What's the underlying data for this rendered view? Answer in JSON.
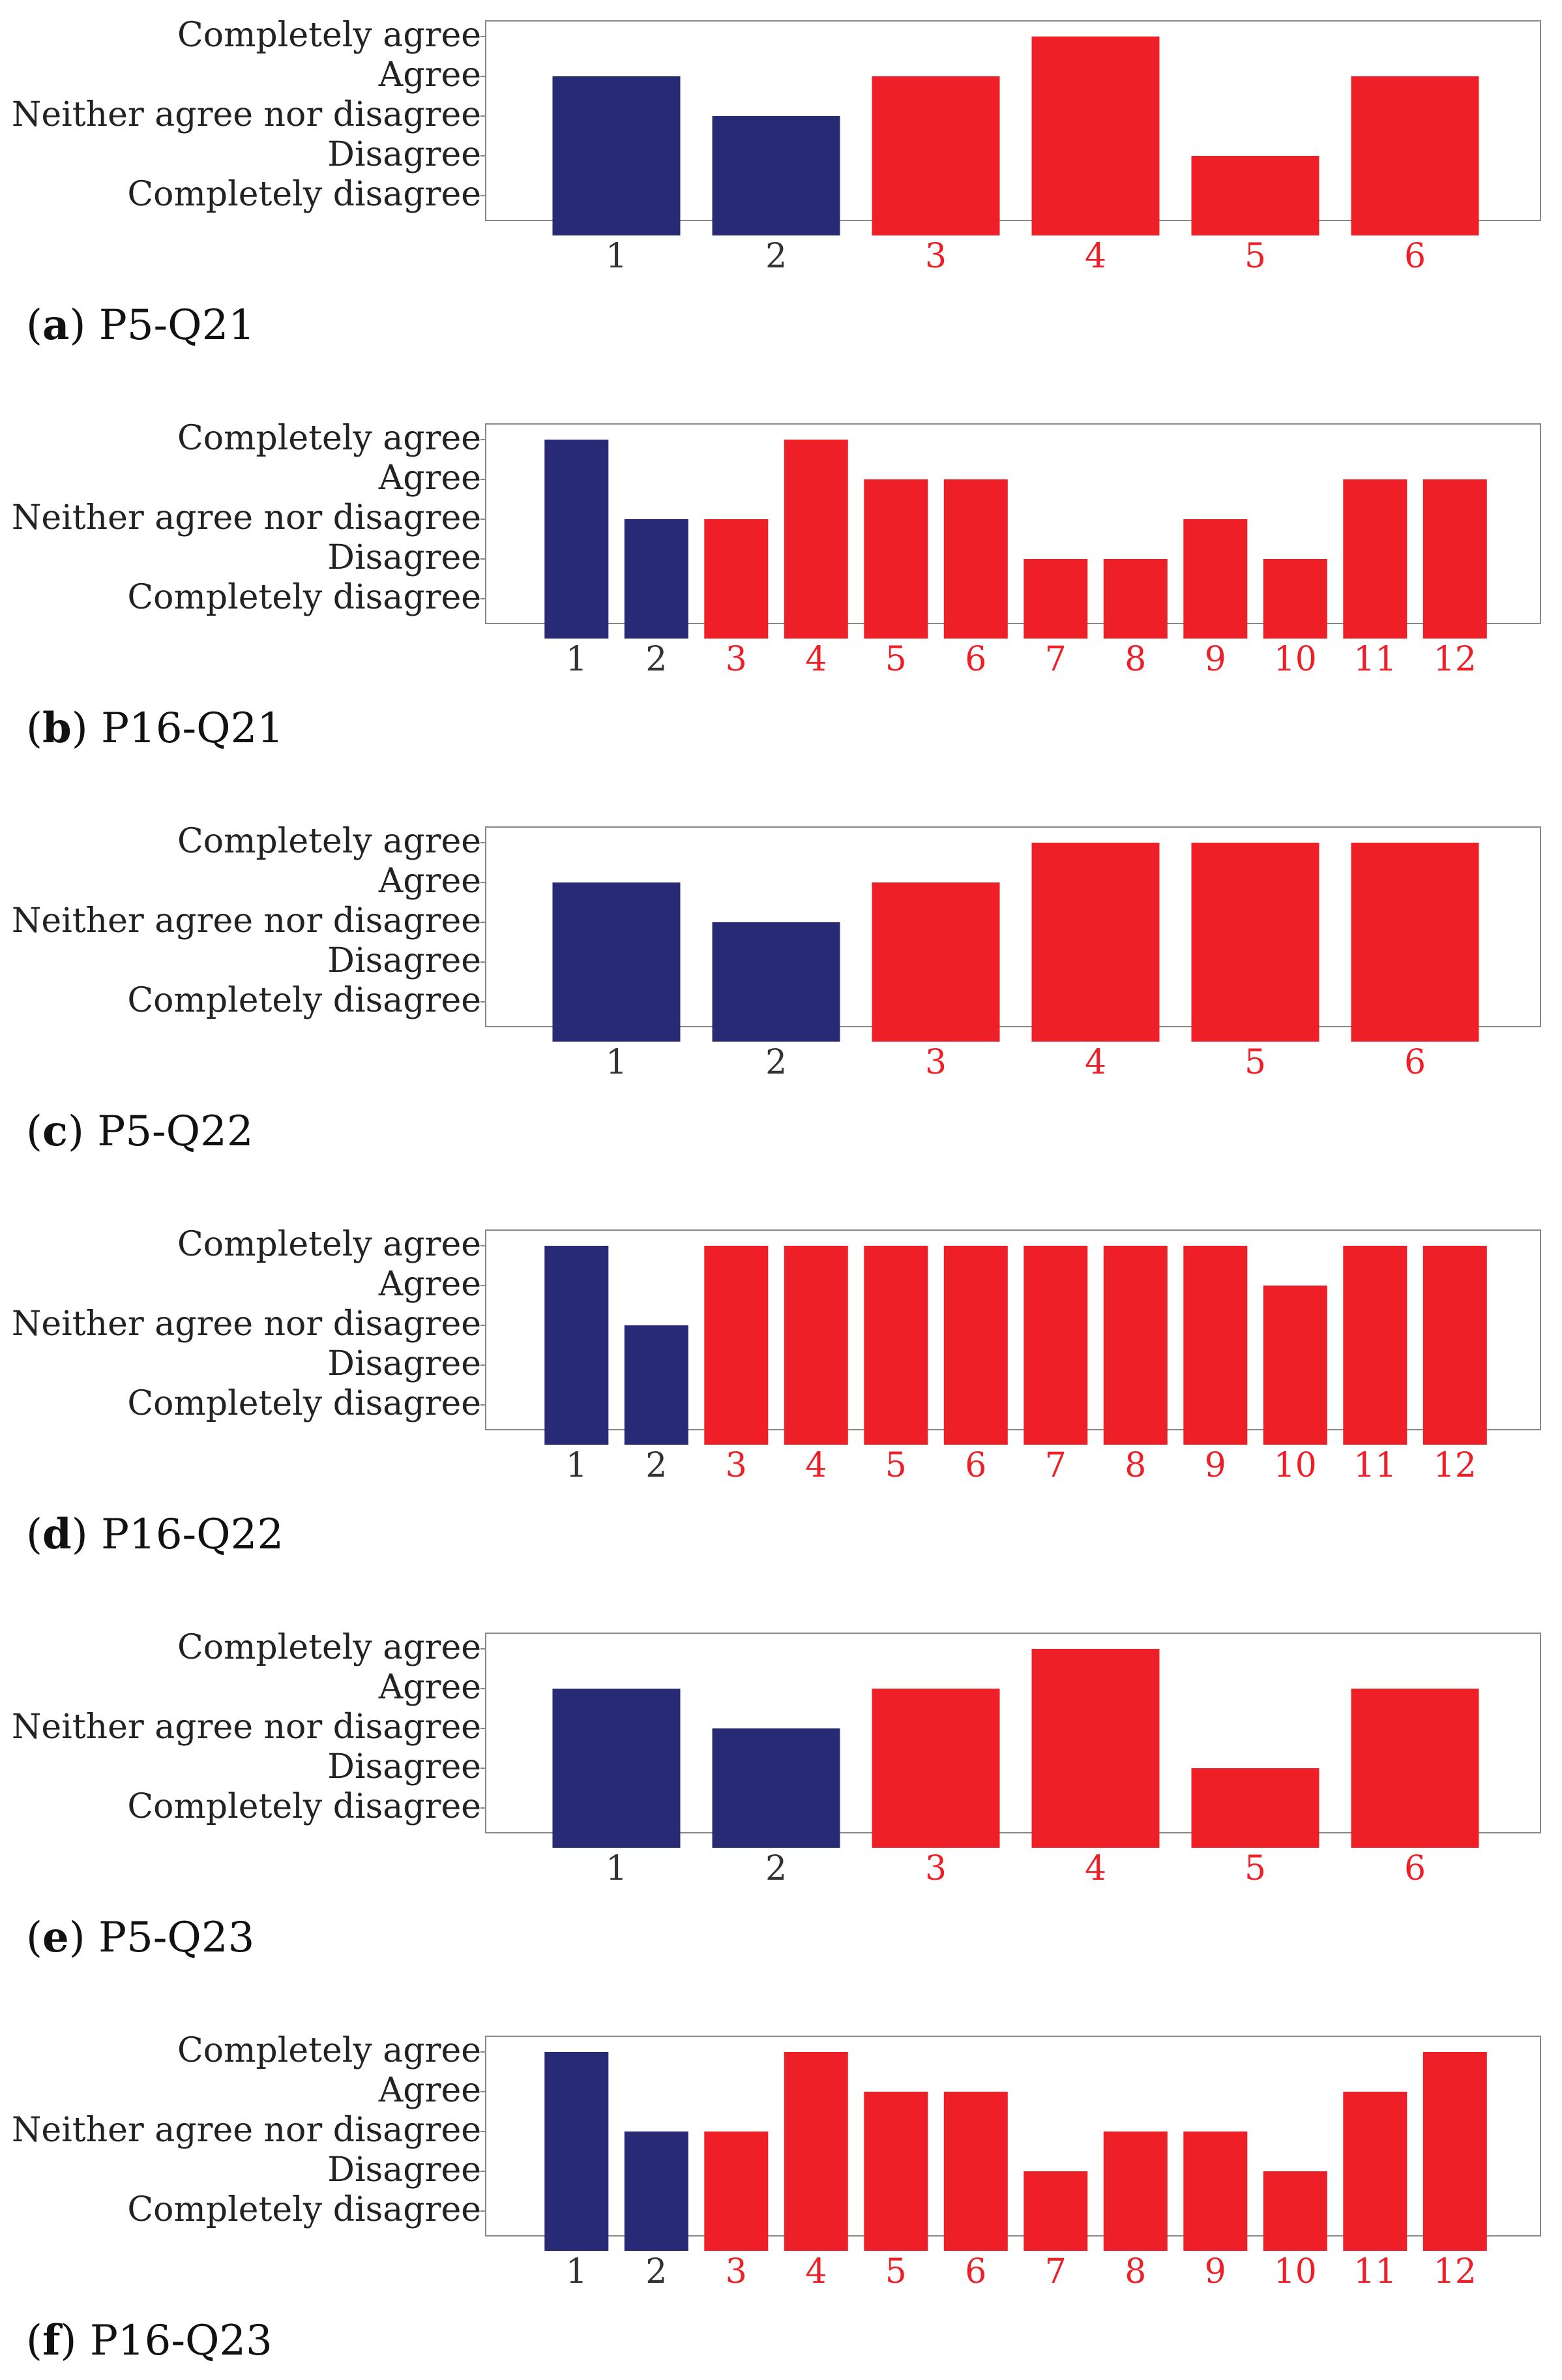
{
  "colors": {
    "group_a": "#292A75",
    "group_b": "#EE1F26",
    "tick_a": "#333333",
    "tick_b": "#EE1F26",
    "frame": "#888888",
    "text": "#222222"
  },
  "chart_data": [
    {
      "type": "bar",
      "caption_letter": "a",
      "caption_text": "P5-Q21",
      "y_levels": [
        "Completely disagree",
        "Disagree",
        "Neither agree nor disagree",
        "Agree",
        "Completely agree"
      ],
      "ylim": [
        1,
        5
      ],
      "categories": [
        "1",
        "2",
        "3",
        "4",
        "5",
        "6"
      ],
      "values": [
        4,
        3,
        4,
        5,
        2,
        4
      ],
      "groups": [
        "a",
        "a",
        "b",
        "b",
        "b",
        "b"
      ]
    },
    {
      "type": "bar",
      "caption_letter": "b",
      "caption_text": "P16-Q21",
      "y_levels": [
        "Completely disagree",
        "Disagree",
        "Neither agree nor disagree",
        "Agree",
        "Completely agree"
      ],
      "ylim": [
        1,
        5
      ],
      "categories": [
        "1",
        "2",
        "3",
        "4",
        "5",
        "6",
        "7",
        "8",
        "9",
        "10",
        "11",
        "12"
      ],
      "values": [
        5,
        3,
        3,
        5,
        4,
        4,
        2,
        2,
        3,
        2,
        4,
        4
      ],
      "groups": [
        "a",
        "a",
        "b",
        "b",
        "b",
        "b",
        "b",
        "b",
        "b",
        "b",
        "b",
        "b"
      ]
    },
    {
      "type": "bar",
      "caption_letter": "c",
      "caption_text": "P5-Q22",
      "y_levels": [
        "Completely disagree",
        "Disagree",
        "Neither agree nor disagree",
        "Agree",
        "Completely agree"
      ],
      "ylim": [
        1,
        5
      ],
      "categories": [
        "1",
        "2",
        "3",
        "4",
        "5",
        "6"
      ],
      "values": [
        4,
        3,
        4,
        5,
        5,
        5
      ],
      "groups": [
        "a",
        "a",
        "b",
        "b",
        "b",
        "b"
      ]
    },
    {
      "type": "bar",
      "caption_letter": "d",
      "caption_text": "P16-Q22",
      "y_levels": [
        "Completely disagree",
        "Disagree",
        "Neither agree nor disagree",
        "Agree",
        "Completely agree"
      ],
      "ylim": [
        1,
        5
      ],
      "categories": [
        "1",
        "2",
        "3",
        "4",
        "5",
        "6",
        "7",
        "8",
        "9",
        "10",
        "11",
        "12"
      ],
      "values": [
        5,
        3,
        5,
        5,
        5,
        5,
        5,
        5,
        5,
        4,
        5,
        5
      ],
      "groups": [
        "a",
        "a",
        "b",
        "b",
        "b",
        "b",
        "b",
        "b",
        "b",
        "b",
        "b",
        "b"
      ]
    },
    {
      "type": "bar",
      "caption_letter": "e",
      "caption_text": "P5-Q23",
      "y_levels": [
        "Completely disagree",
        "Disagree",
        "Neither agree nor disagree",
        "Agree",
        "Completely agree"
      ],
      "ylim": [
        1,
        5
      ],
      "categories": [
        "1",
        "2",
        "3",
        "4",
        "5",
        "6"
      ],
      "values": [
        4,
        3,
        4,
        5,
        2,
        4
      ],
      "groups": [
        "a",
        "a",
        "b",
        "b",
        "b",
        "b"
      ]
    },
    {
      "type": "bar",
      "caption_letter": "f",
      "caption_text": "P16-Q23",
      "y_levels": [
        "Completely disagree",
        "Disagree",
        "Neither agree nor disagree",
        "Agree",
        "Completely agree"
      ],
      "ylim": [
        1,
        5
      ],
      "categories": [
        "1",
        "2",
        "3",
        "4",
        "5",
        "6",
        "7",
        "8",
        "9",
        "10",
        "11",
        "12"
      ],
      "values": [
        5,
        3,
        3,
        5,
        4,
        4,
        2,
        3,
        3,
        2,
        4,
        5
      ],
      "groups": [
        "a",
        "a",
        "b",
        "b",
        "b",
        "b",
        "b",
        "b",
        "b",
        "b",
        "b",
        "b"
      ]
    }
  ]
}
